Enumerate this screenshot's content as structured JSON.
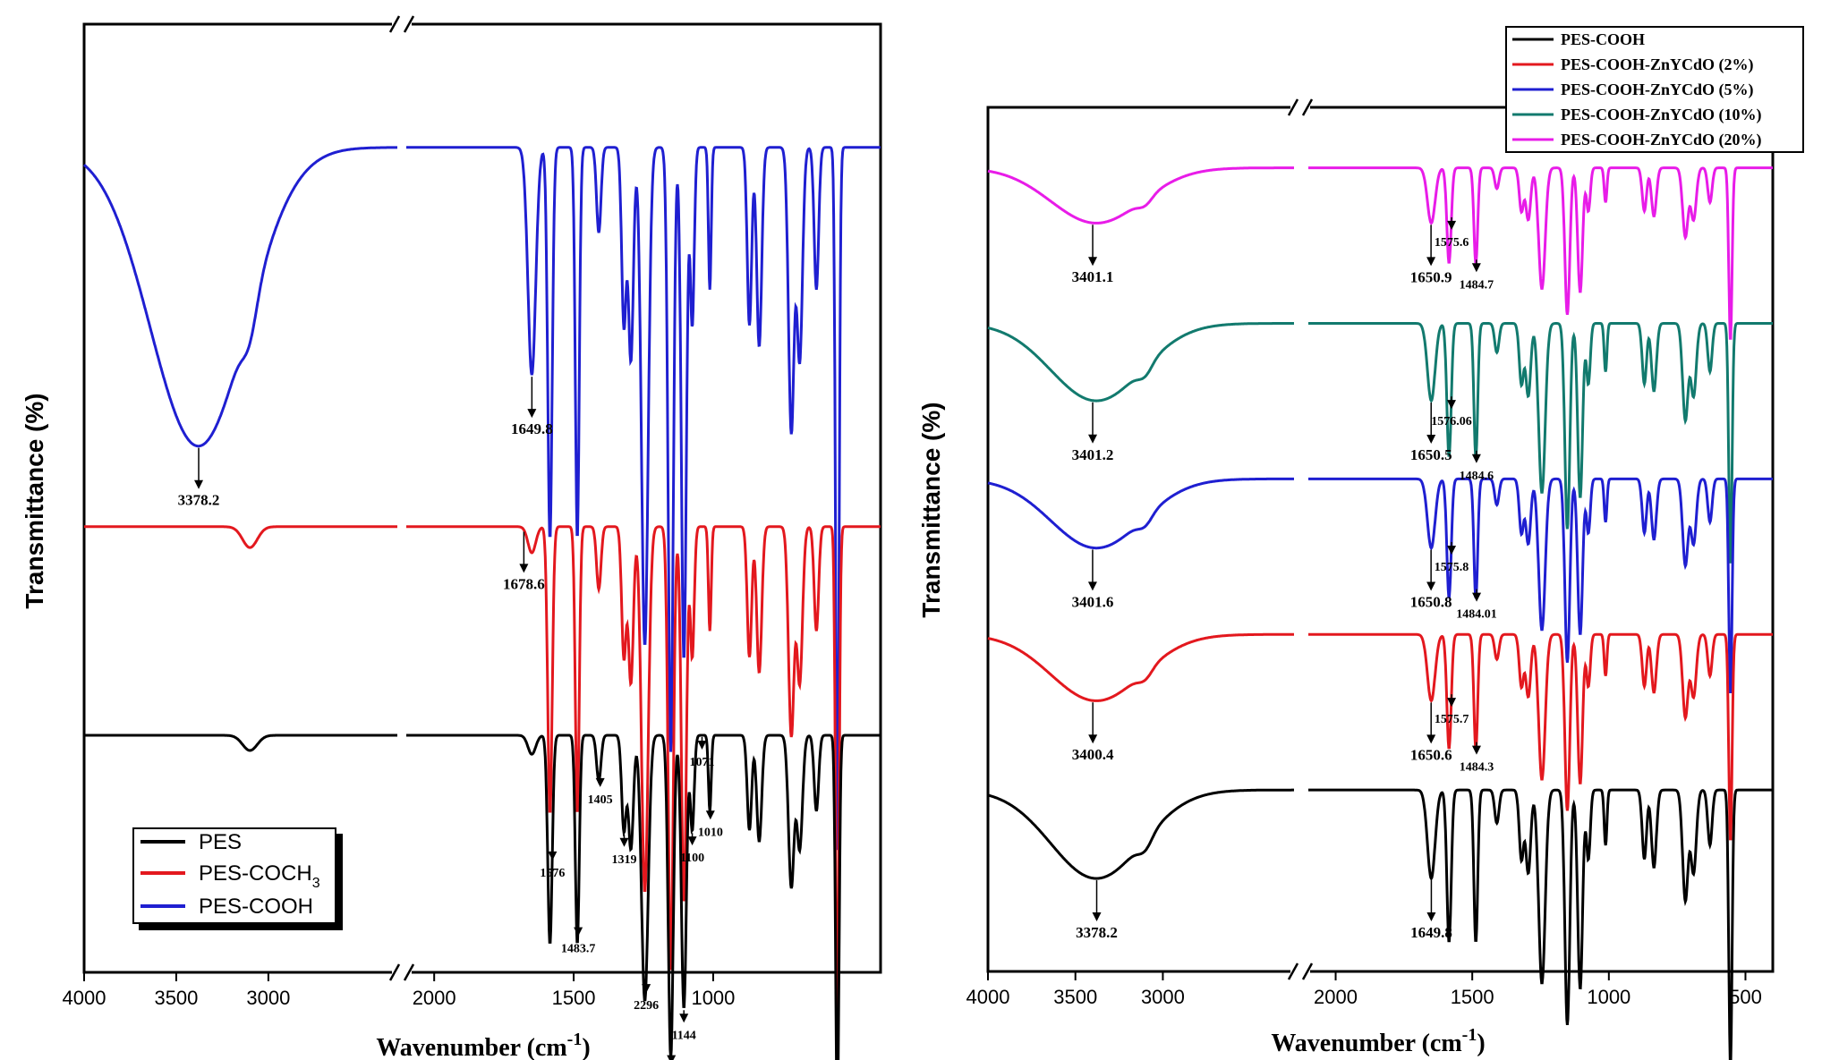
{
  "chart_data": [
    {
      "type": "line",
      "title": "",
      "xlabel": "Wavenumber (cm",
      "xlabel_sup": "-1",
      "xlabel_suffix": ")",
      "ylabel": "Transmittance (%)",
      "xlim": [
        4000,
        400
      ],
      "axis_break": [
        2300,
        2100
      ],
      "xticks": [
        "4000",
        "3500",
        "3000",
        "2000",
        "1500",
        "1000"
      ],
      "x_reversed": true,
      "y_ticks_shown": false,
      "legend_position": "bottom-left",
      "legend": [
        {
          "label": "PES",
          "color": "#000000"
        },
        {
          "label": "PES-COCH",
          "sub": "3",
          "color": "#e3181e"
        },
        {
          "label": "PES-COOH",
          "color": "#1f1fd1"
        }
      ],
      "series": [
        {
          "name": "PES-COOH",
          "color": "#1f1fd1",
          "baseline": 0.87,
          "depth": 0.75,
          "profile": "cooh"
        },
        {
          "name": "PES-COCH3",
          "color": "#e3181e",
          "baseline": 0.47,
          "depth": 0.55,
          "profile": "coch3"
        },
        {
          "name": "PES",
          "color": "#000000",
          "baseline": 0.25,
          "depth": 0.4,
          "profile": "pes"
        }
      ],
      "annotations": [
        {
          "text": "3378.2",
          "x": 3378.2,
          "series": 0
        },
        {
          "text": "1649.8",
          "x": 1649.8,
          "series": 0
        },
        {
          "text": "1678.6",
          "x": 1678.6,
          "series": 1
        },
        {
          "text": "1576",
          "x": 1576,
          "series": 2
        },
        {
          "text": "1483.7",
          "x": 1483.7,
          "series": 2
        },
        {
          "text": "1405",
          "x": 1405,
          "series": 2
        },
        {
          "text": "1319",
          "x": 1319,
          "series": 2
        },
        {
          "text": "2296",
          "x": 1240,
          "series": 2
        },
        {
          "text": "2233",
          "x": 1150,
          "series": 2
        },
        {
          "text": "1144",
          "x": 1105,
          "series": 2
        },
        {
          "text": "1100",
          "x": 1075,
          "series": 2
        },
        {
          "text": "1071",
          "x": 1040,
          "series": 2
        },
        {
          "text": "1010",
          "x": 1010,
          "series": 2
        }
      ]
    },
    {
      "type": "line",
      "title": "",
      "xlabel": "Wavenumber (cm",
      "xlabel_sup": "-1",
      "xlabel_suffix": ")",
      "ylabel": "Transmittance (%)",
      "xlim": [
        4000,
        400
      ],
      "axis_break": [
        2250,
        2100
      ],
      "xticks": [
        "4000",
        "3500",
        "3000",
        "2000",
        "1500",
        "1000",
        "500"
      ],
      "x_reversed": true,
      "y_ticks_shown": false,
      "legend_position": "top-right",
      "legend": [
        {
          "label": "PES-COOH",
          "color": "#000000"
        },
        {
          "label": "PES-COOH-ZnYCdO (2%)",
          "color": "#e3181e"
        },
        {
          "label": "PES-COOH-ZnYCdO (5%)",
          "color": "#1f1fd1"
        },
        {
          "label": "PES-COOH-ZnYCdO (10%)",
          "color": "#127a6e"
        },
        {
          "label": "PES-COOH-ZnYCdO (20%)",
          "color": "#e81ce8"
        }
      ],
      "series": [
        {
          "name": "PES-COOH-ZnYCdO (20%)",
          "color": "#e81ce8",
          "baseline": 0.93,
          "depth": 0.2
        },
        {
          "name": "PES-COOH-ZnYCdO (10%)",
          "color": "#127a6e",
          "baseline": 0.75,
          "depth": 0.28
        },
        {
          "name": "PES-COOH-ZnYCdO (5%)",
          "color": "#1f1fd1",
          "baseline": 0.57,
          "depth": 0.25
        },
        {
          "name": "PES-COOH-ZnYCdO (2%)",
          "color": "#e3181e",
          "baseline": 0.39,
          "depth": 0.24
        },
        {
          "name": "PES-COOH",
          "color": "#000000",
          "baseline": 0.21,
          "depth": 0.32
        }
      ],
      "annotations": [
        {
          "text": "3401.1",
          "x": 3401.1,
          "series": 0
        },
        {
          "text": "1650.9",
          "x": 1650.9,
          "series": 0
        },
        {
          "text": "1575.6",
          "x": 1575.6,
          "series": 0
        },
        {
          "text": "1484.7",
          "x": 1484.7,
          "series": 0
        },
        {
          "text": "3401.2",
          "x": 3401.2,
          "series": 1
        },
        {
          "text": "1650.5",
          "x": 1650.5,
          "series": 1
        },
        {
          "text": "1576.06",
          "x": 1576.06,
          "series": 1
        },
        {
          "text": "1484.6",
          "x": 1484.6,
          "series": 1
        },
        {
          "text": "3401.6",
          "x": 3401.6,
          "series": 2
        },
        {
          "text": "1650.8",
          "x": 1650.8,
          "series": 2
        },
        {
          "text": "1575.8",
          "x": 1575.8,
          "series": 2
        },
        {
          "text": "1484.01",
          "x": 1484.01,
          "series": 2
        },
        {
          "text": "3400.4",
          "x": 3400.4,
          "series": 3
        },
        {
          "text": "1650.6",
          "x": 1650.6,
          "series": 3
        },
        {
          "text": "1575.7",
          "x": 1575.7,
          "series": 3
        },
        {
          "text": "1484.3",
          "x": 1484.3,
          "series": 3
        },
        {
          "text": "3378.2",
          "x": 3378.2,
          "series": 4
        },
        {
          "text": "1649.8",
          "x": 1649.8,
          "series": 4
        }
      ]
    }
  ]
}
